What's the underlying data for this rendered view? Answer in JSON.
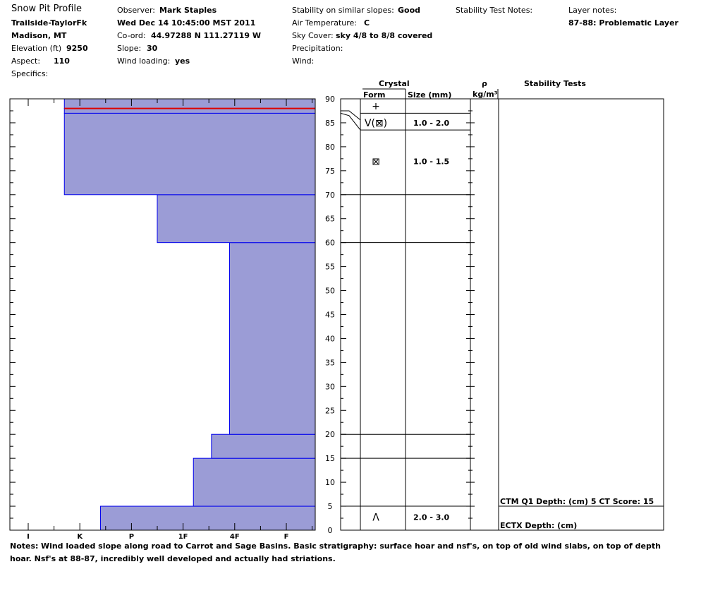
{
  "header": {
    "title": "Snow Pit Profile",
    "location": "Trailside-TaylorFk",
    "region": "Madison, MT",
    "elevation_label": "Elevation (ft)",
    "elevation_value": "9250",
    "aspect_label": "Aspect:",
    "aspect_value": "110",
    "specifics_label": "Specifics:",
    "observer_label": "Observer:",
    "observer_value": "Mark Staples",
    "datetime": "Wed Dec 14 10:45:00 MST 2011",
    "coord_label": "Co-ord:",
    "coord_value": "44.97288 N 111.27119 W",
    "slope_label": "Slope:",
    "slope_value": "30",
    "wind_loading_label": "Wind loading:",
    "wind_loading_value": "yes",
    "stability_label": "Stability on similar slopes:",
    "stability_value": "Good",
    "air_temp_label": "Air Temperature:",
    "air_temp_value": "C",
    "sky_label": "Sky Cover:",
    "sky_value": "sky 4/8 to 8/8 covered",
    "precip_label": "Precipitation:",
    "wind_label": "Wind:",
    "stability_notes_label": "Stability Test Notes:",
    "layer_notes_label": "Layer notes:",
    "layer_notes_value": "87-88: Problematic Layer"
  },
  "columns": {
    "crystal": "Crystal",
    "form": "Form",
    "size": "Size (mm)",
    "rho": "ρ",
    "density_unit": "kg/m³",
    "stability_tests": "Stability Tests"
  },
  "chart_data": {
    "type": "bar",
    "title": "",
    "xlabel": "",
    "ylabel": "",
    "hardness_scale": [
      "I",
      "K",
      "P",
      "1F",
      "4F",
      "F"
    ],
    "ylim": [
      0,
      90
    ],
    "yticks": [
      "0",
      "5",
      "10",
      "15",
      "20",
      "25",
      "30",
      "35",
      "40",
      "45",
      "50",
      "55",
      "60",
      "65",
      "70",
      "75",
      "80",
      "85",
      "90"
    ],
    "layers": [
      {
        "bottom": 0,
        "top": 5,
        "hardness": 1.4
      },
      {
        "bottom": 5,
        "top": 15,
        "hardness": 3.2
      },
      {
        "bottom": 15,
        "top": 20,
        "hardness": 3.55
      },
      {
        "bottom": 20,
        "top": 60,
        "hardness": 3.9
      },
      {
        "bottom": 60,
        "top": 70,
        "hardness": 2.5
      },
      {
        "bottom": 70,
        "top": 87,
        "hardness": 0.7
      },
      {
        "bottom": 87,
        "top": 88,
        "hardness": 0.7
      },
      {
        "bottom": 88,
        "top": 90,
        "hardness": 0.7
      }
    ],
    "problem_layer_depth": 88,
    "colors": {
      "fill": "#9b9cd6",
      "edge": "#0000ee",
      "marker": "#dd0000"
    }
  },
  "layer_table": {
    "boundaries": [
      5,
      15,
      20,
      60,
      70,
      83.5,
      87
    ],
    "rows": [
      {
        "depth": 88.5,
        "form": "+",
        "size": ""
      },
      {
        "depth": 85,
        "form": "V(⊠)",
        "size": "1.0 - 2.0"
      },
      {
        "depth": 77,
        "form": "⊠",
        "size": "1.0 - 1.5"
      },
      {
        "depth": 2.75,
        "form": "Λ",
        "size": "2.0 - 3.0"
      }
    ]
  },
  "stability_tests": [
    {
      "text": "CTM Q1 Depth: (cm) 5 CT Score: 15"
    },
    {
      "text": "ECTX   Depth: (cm)"
    }
  ],
  "notes": {
    "label": "Notes:",
    "text": "Wind loaded slope along road to Carrot and Sage Basins.  Basic stratigraphy: surface hoar and nsf's, on top of old wind slabs, on top of depth hoar.  Nsf's at 88-87, incredibly well developed and actually had striations."
  }
}
